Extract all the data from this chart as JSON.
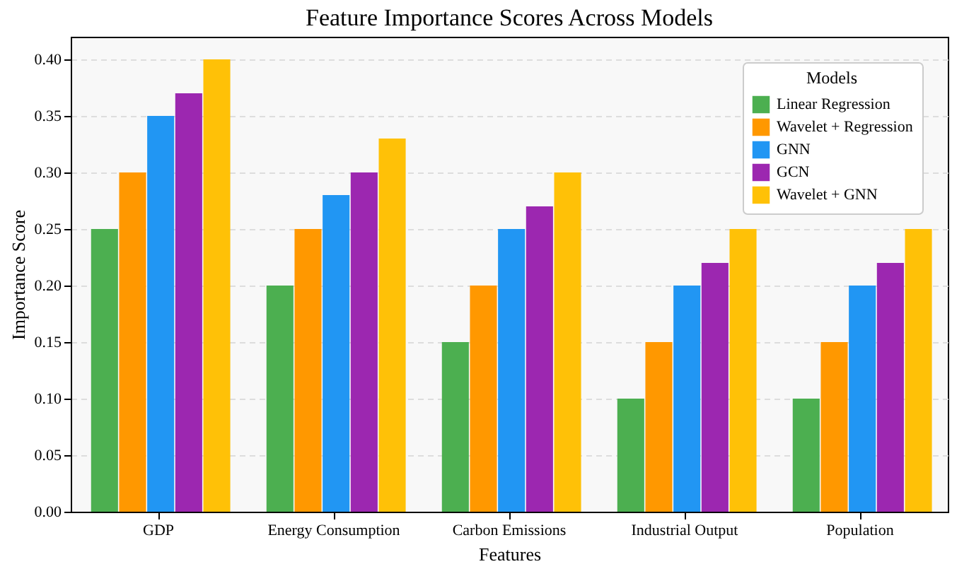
{
  "chart_data": {
    "type": "bar",
    "title": "Feature Importance Scores Across Models",
    "xlabel": "Features",
    "ylabel": "Importance Score",
    "legend_title": "Models",
    "legend": "top right",
    "grid": "y",
    "categories": [
      "GDP",
      "Energy Consumption",
      "Carbon Emissions",
      "Industrial Output",
      "Population"
    ],
    "ylim": [
      0,
      0.42
    ],
    "yticks": [
      {
        "value": 0,
        "label": "0.00"
      },
      0.05,
      {
        "value": 0.1,
        "label": "0.10"
      },
      0.15,
      {
        "value": 0.2,
        "label": "0.20"
      },
      0.25,
      {
        "value": 0.3,
        "label": "0.30"
      },
      0.35,
      {
        "value": 0.4,
        "label": "0.40"
      }
    ],
    "series": [
      {
        "name": "Linear Regression",
        "color": "#4caf50",
        "values": [
          0.25,
          0.2,
          0.15,
          0.1,
          0.1
        ]
      },
      {
        "name": "Wavelet + Regression",
        "color": "#ff9800",
        "values": [
          0.3,
          0.25,
          0.2,
          0.15,
          0.15
        ]
      },
      {
        "name": "GNN",
        "color": "#2196f3",
        "values": [
          0.35,
          0.28,
          0.25,
          0.2,
          0.2
        ]
      },
      {
        "name": "GCN",
        "color": "#9c27b0",
        "values": [
          0.37,
          0.3,
          0.27,
          0.22,
          0.22
        ]
      },
      {
        "name": "Wavelet + GNN",
        "color": "#ffc107",
        "values": [
          0.4,
          0.33,
          0.3,
          0.25,
          0.25
        ]
      }
    ]
  }
}
